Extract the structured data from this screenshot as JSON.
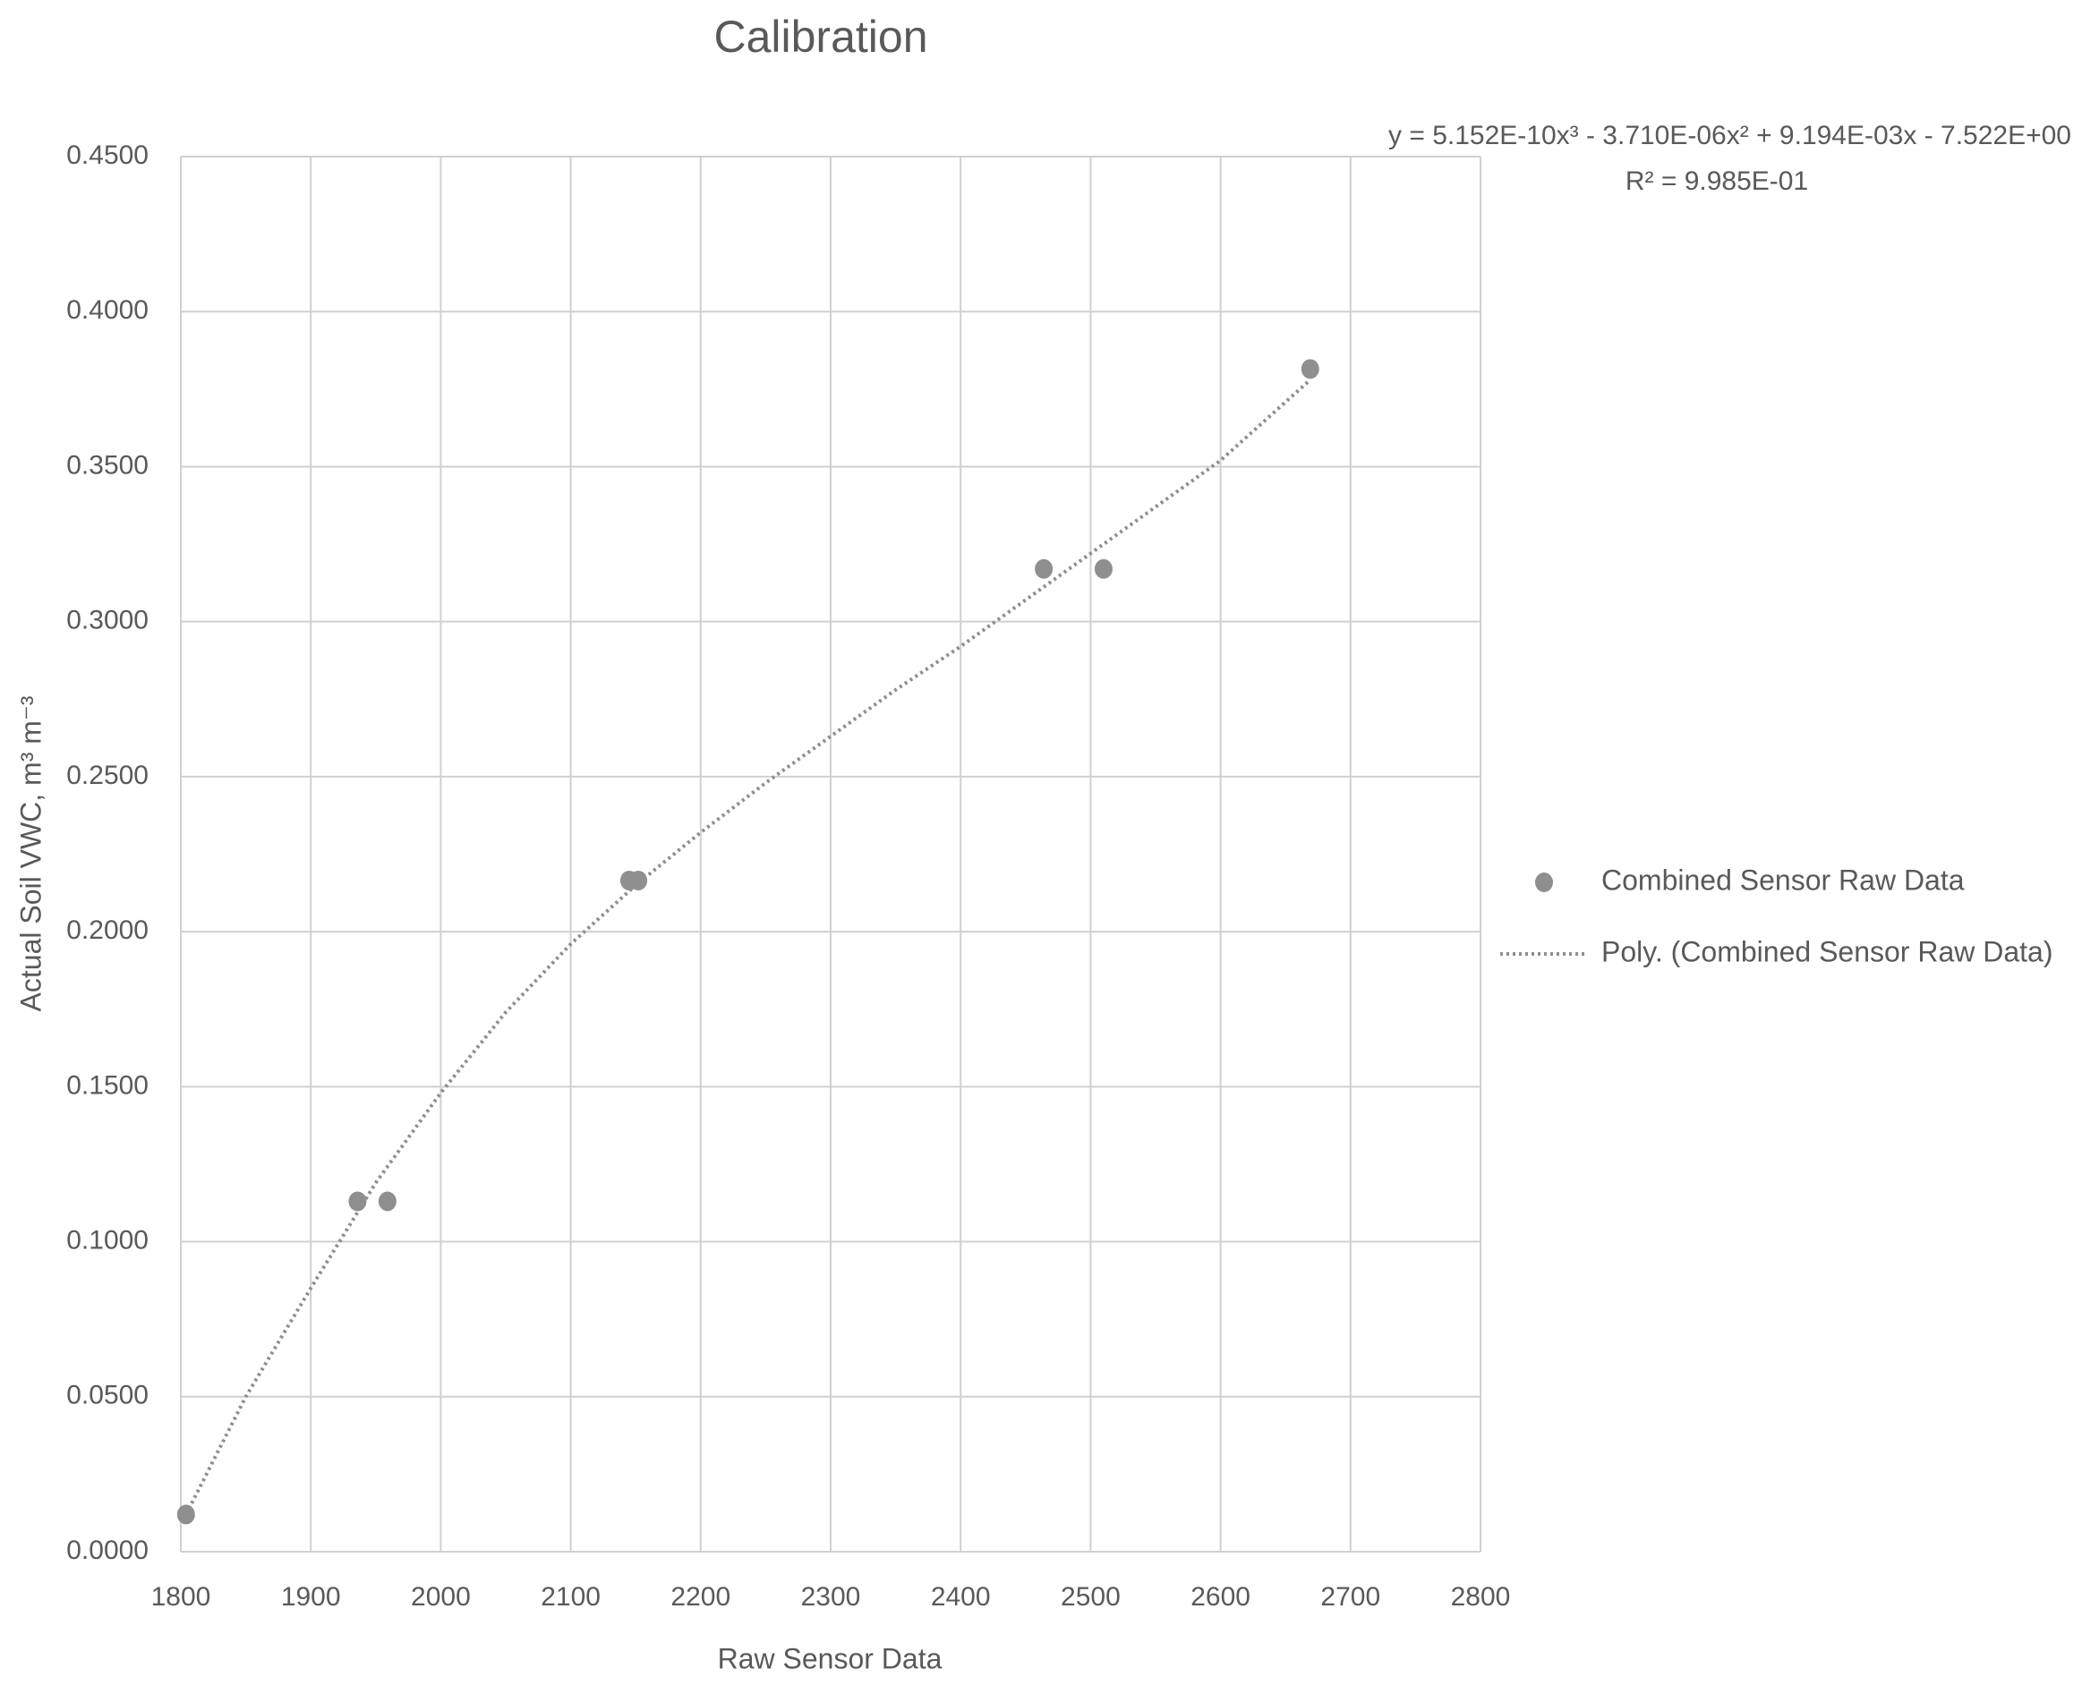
{
  "chart_data": {
    "type": "scatter",
    "title": "Calibration",
    "x_label": "Raw Sensor Data",
    "y_label": "Actual Soil VWC, m³ m⁻³",
    "annotations": [
      "y = 5.152E-10x³ - 3.710E-06x² + 9.194E-03x - 7.522E+00",
      "R² = 9.985E-01"
    ],
    "xlim": [
      1800,
      2800
    ],
    "xticks": [
      1800,
      1900,
      2000,
      2100,
      2200,
      2300,
      2400,
      2500,
      2600,
      2700,
      2800
    ],
    "ylim": [
      0,
      0.45
    ],
    "yticks": [
      {
        "value": 0,
        "label": "0.0000"
      },
      {
        "value": 0.05,
        "label": "0.0500"
      },
      {
        "value": 0.1,
        "label": "0.1000"
      },
      {
        "value": 0.15,
        "label": "0.1500"
      },
      {
        "value": 0.2,
        "label": "0.2000"
      },
      {
        "value": 0.25,
        "label": "0.2500"
      },
      {
        "value": 0.3,
        "label": "0.3000"
      },
      {
        "value": 0.35,
        "label": "0.3500"
      },
      {
        "value": 0.4,
        "label": "0.4000"
      },
      {
        "value": 0.45,
        "label": "0.4500"
      }
    ],
    "grid": true,
    "legend": "right",
    "series": [
      {
        "name": "Combined Sensor Raw Data",
        "kind": "points",
        "color": "#8f8f8f",
        "x": [
          1804,
          1936,
          1959,
          2145,
          2152,
          2464,
          2510,
          2669
        ],
        "values": [
          0.012,
          0.113,
          0.113,
          0.2165,
          0.2165,
          0.317,
          0.317,
          0.3815
        ]
      },
      {
        "name": "Poly. (Combined Sensor Raw Data)",
        "kind": "dotted-line",
        "color": "#8f8f8f",
        "x": [
          1804,
          1850,
          1900,
          1950,
          2000,
          2050,
          2100,
          2150,
          2200,
          2250,
          2300,
          2350,
          2400,
          2450,
          2500,
          2550,
          2600,
          2669
        ],
        "values": [
          0.012,
          0.05,
          0.085,
          0.119,
          0.148,
          0.174,
          0.196,
          0.215,
          0.232,
          0.248,
          0.263,
          0.278,
          0.292,
          0.307,
          0.322,
          0.337,
          0.352,
          0.378
        ]
      }
    ]
  }
}
